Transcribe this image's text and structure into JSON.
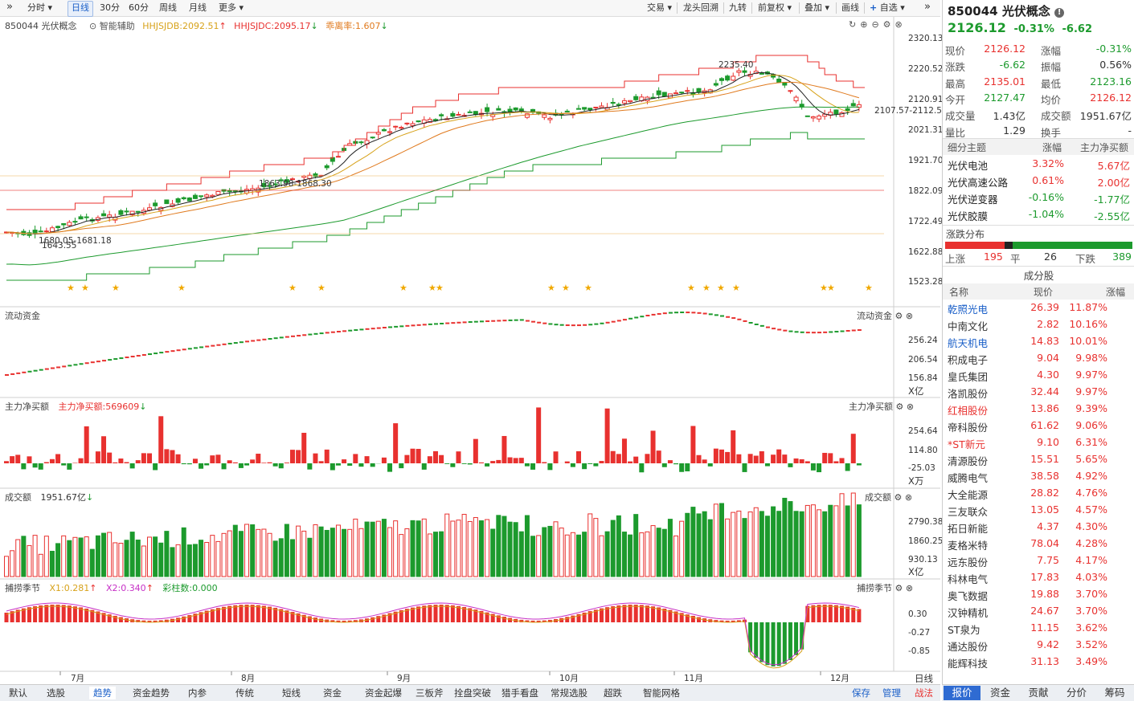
{
  "toolbar": {
    "left_items": [
      "分时",
      "日线",
      "30分",
      "60分",
      "周线",
      "月线",
      "更多"
    ],
    "active": "日线",
    "right_items": [
      "交易",
      "龙头回溯",
      "九转",
      "前复权",
      "叠加",
      "画线",
      "自选"
    ]
  },
  "main_chart": {
    "code_name": "850044 光伏概念",
    "assist_label": "智能辅助",
    "hhjsjdb_label": "HHJSJDB:2092.51",
    "hhjsjdc_label": "HHJSJDC:2095.17",
    "guaili_label": "乖离率:1.607",
    "y_ticks": [
      "2320.13",
      "2220.52",
      "2120.91",
      "2021.31",
      "1921.70",
      "1822.09",
      "1722.49",
      "1622.88",
      "1523.28"
    ],
    "annotations": {
      "high": "2235.40",
      "mid": "1863.98-1868.30",
      "low1": "1680.05-1681.18",
      "low2": "1643.55",
      "right": "2107.57-2112.58"
    },
    "x_labels": [
      "7月",
      "8月",
      "9月",
      "10月",
      "11月",
      "12月"
    ],
    "period_label": "日线"
  },
  "flow_panel": {
    "title": "流动资金",
    "right_title": "流动资金",
    "y_ticks": [
      "256.24",
      "206.54",
      "156.84"
    ],
    "unit": "X亿"
  },
  "netbuy_panel": {
    "title": "主力净买额",
    "value_label": "主力净买额:569609",
    "right_title": "主力净买额",
    "y_ticks": [
      "254.64",
      "114.80",
      "-25.03"
    ],
    "unit": "X万"
  },
  "volume_panel": {
    "title": "成交额",
    "value_label": "1951.67亿",
    "right_title": "成交额",
    "y_ticks": [
      "2790.38",
      "1860.25",
      "930.13"
    ],
    "unit": "X亿"
  },
  "season_panel": {
    "title": "捕捞季节",
    "x1": "X1:0.281",
    "x2": "X2:0.340",
    "bars": "彩柱数:0.000",
    "right_title": "捕捞季节",
    "y_ticks": [
      "0.30",
      "-0.27",
      "-0.85"
    ]
  },
  "quote": {
    "title": "850044 光伏概念",
    "price": "2126.12",
    "change_pct": "-0.31%",
    "change": "-6.62",
    "rows": [
      {
        "l1": "现价",
        "v1": "2126.12",
        "c1": "red",
        "l2": "涨幅",
        "v2": "-0.31%",
        "c2": "green"
      },
      {
        "l1": "涨跌",
        "v1": "-6.62",
        "c1": "green",
        "l2": "振幅",
        "v2": "0.56%",
        "c2": ""
      },
      {
        "l1": "最高",
        "v1": "2135.01",
        "c1": "red",
        "l2": "最低",
        "v2": "2123.16",
        "c2": "green"
      },
      {
        "l1": "今开",
        "v1": "2127.47",
        "c1": "green",
        "l2": "均价",
        "v2": "2126.12",
        "c2": "red"
      },
      {
        "l1": "成交量",
        "v1": "1.43亿",
        "c1": "",
        "l2": "成交额",
        "v2": "1951.67亿",
        "c2": ""
      },
      {
        "l1": "量比",
        "v1": "1.29",
        "c1": "",
        "l2": "换手",
        "v2": "-",
        "c2": ""
      }
    ]
  },
  "themes": {
    "headers": [
      "细分主题",
      "涨幅",
      "主力净买额"
    ],
    "rows": [
      {
        "name": "光伏电池",
        "pct": "3.32%",
        "pc": "red",
        "amt": "5.67亿",
        "ac": "red"
      },
      {
        "name": "光伏高速公路",
        "pct": "0.61%",
        "pc": "red",
        "amt": "2.00亿",
        "ac": "red"
      },
      {
        "name": "光伏逆变器",
        "pct": "-0.16%",
        "pc": "green",
        "amt": "-1.77亿",
        "ac": "green"
      },
      {
        "name": "光伏胶膜",
        "pct": "-1.04%",
        "pc": "green",
        "amt": "-2.55亿",
        "ac": "green"
      }
    ]
  },
  "distribution": {
    "title": "涨跌分布",
    "up_label": "上涨",
    "up": "195",
    "flat_label": "平",
    "flat": "26",
    "down_label": "下跌",
    "down": "389",
    "up_count": 195,
    "flat_count": 26,
    "down_count": 389
  },
  "constituents": {
    "title": "成分股",
    "headers": [
      "名称",
      "现价",
      "涨幅"
    ],
    "rows": [
      {
        "name": "乾照光电",
        "price": "26.39",
        "pct": "11.87%",
        "nc": "blue"
      },
      {
        "name": "中南文化",
        "price": "2.82",
        "pct": "10.16%",
        "nc": ""
      },
      {
        "name": "航天机电",
        "price": "14.83",
        "pct": "10.01%",
        "nc": "blue"
      },
      {
        "name": "积成电子",
        "price": "9.04",
        "pct": "9.98%",
        "nc": ""
      },
      {
        "name": "皇氏集团",
        "price": "4.30",
        "pct": "9.97%",
        "nc": ""
      },
      {
        "name": "洛凯股份",
        "price": "32.44",
        "pct": "9.97%",
        "nc": ""
      },
      {
        "name": "红相股份",
        "price": "13.86",
        "pct": "9.39%",
        "nc": "red"
      },
      {
        "name": "帝科股份",
        "price": "61.62",
        "pct": "9.06%",
        "nc": ""
      },
      {
        "name": "*ST新元",
        "price": "9.10",
        "pct": "6.31%",
        "nc": "red"
      },
      {
        "name": "清源股份",
        "price": "15.51",
        "pct": "5.65%",
        "nc": ""
      },
      {
        "name": "威腾电气",
        "price": "38.58",
        "pct": "4.92%",
        "nc": ""
      },
      {
        "name": "大全能源",
        "price": "28.82",
        "pct": "4.76%",
        "nc": ""
      },
      {
        "name": "三友联众",
        "price": "13.05",
        "pct": "4.57%",
        "nc": ""
      },
      {
        "name": "拓日新能",
        "price": "4.37",
        "pct": "4.30%",
        "nc": ""
      },
      {
        "name": "麦格米特",
        "price": "78.04",
        "pct": "4.28%",
        "nc": ""
      },
      {
        "name": "远东股份",
        "price": "7.75",
        "pct": "4.17%",
        "nc": ""
      },
      {
        "name": "科林电气",
        "price": "17.83",
        "pct": "4.03%",
        "nc": ""
      },
      {
        "name": "奥飞数据",
        "price": "19.88",
        "pct": "3.70%",
        "nc": ""
      },
      {
        "name": "汉钟精机",
        "price": "24.67",
        "pct": "3.70%",
        "nc": ""
      },
      {
        "name": "ST泉为",
        "price": "11.15",
        "pct": "3.62%",
        "nc": ""
      },
      {
        "name": "通达股份",
        "price": "9.42",
        "pct": "3.52%",
        "nc": ""
      },
      {
        "name": "能辉科技",
        "price": "31.13",
        "pct": "3.49%",
        "nc": ""
      }
    ]
  },
  "bottom_tabs": [
    "默认",
    "选股",
    "趋势",
    "资金趋势",
    "内参",
    "传统",
    "短线",
    "资金",
    "资金起爆",
    "三板斧",
    "拴盘突破",
    "猎手看盘",
    "常规选股",
    "超跌",
    "智能网格"
  ],
  "bottom_active": "趋势",
  "bottom_right": [
    "保存",
    "管理",
    "战法"
  ],
  "right_tabs": [
    "报价",
    "资金",
    "贡献",
    "分价",
    "筹码"
  ],
  "right_active": "报价",
  "colors": {
    "up": "#e8312f",
    "down": "#1c9a2d",
    "accent": "#1a5fc8",
    "ma5": "#222222",
    "ma10": "#d7a21a",
    "ma20": "#e07a1e",
    "ma60": "#1c9a2d"
  }
}
